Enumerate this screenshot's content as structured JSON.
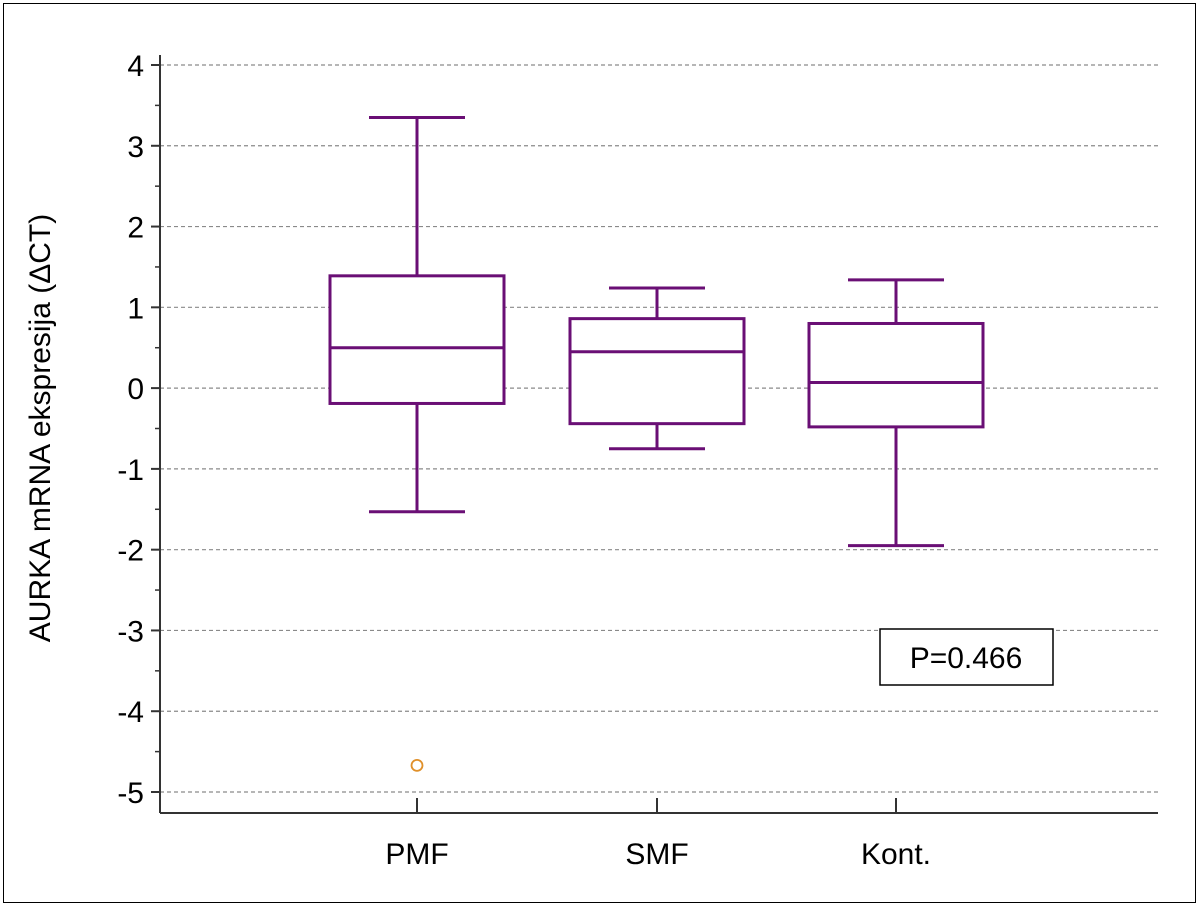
{
  "chart_data": {
    "type": "box",
    "title": "",
    "xlabel": "",
    "ylabel": "AURKA mRNA ekspresija (ΔCT)",
    "ylim": [
      -5.3,
      4.2
    ],
    "yticks": [
      "4",
      "3",
      "2",
      "1",
      "0",
      "-1",
      "-2",
      "-3",
      "-4",
      "-5"
    ],
    "ytick_values": [
      4,
      3,
      2,
      1,
      0,
      -1,
      -2,
      -3,
      -4,
      -5
    ],
    "grid": true,
    "legend": "none",
    "categories": [
      "PMF",
      "SMF",
      "Kont."
    ],
    "boxes": [
      {
        "name": "PMF",
        "whisker_low": -1.53,
        "q1": -0.19,
        "median": 0.5,
        "q3": 1.39,
        "whisker_high": 3.35,
        "outliers": [
          -4.67
        ]
      },
      {
        "name": "SMF",
        "whisker_low": -0.75,
        "q1": -0.44,
        "median": 0.45,
        "q3": 0.86,
        "whisker_high": 1.24,
        "outliers": []
      },
      {
        "name": "Kont.",
        "whisker_low": -1.95,
        "q1": -0.48,
        "median": 0.07,
        "q3": 0.8,
        "whisker_high": 1.34,
        "outliers": []
      }
    ],
    "annotation": "P=0.466",
    "colors": {
      "box": "#6a0f75",
      "outlier": "#e0902a",
      "grid": "#8a8a8a",
      "axis": "#333333",
      "text": "#000000"
    }
  }
}
